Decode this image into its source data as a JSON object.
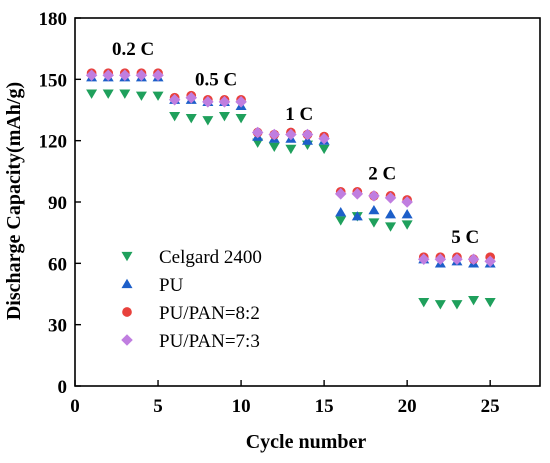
{
  "chart_data": {
    "type": "scatter",
    "xlabel": "Cycle number",
    "ylabel": "Discharge Capacity(mAh/g)",
    "xlim": [
      0,
      28
    ],
    "ylim": [
      0,
      180
    ],
    "xticks": [
      0,
      5,
      10,
      15,
      20,
      25
    ],
    "yticks": [
      0,
      30,
      60,
      90,
      120,
      150,
      180
    ],
    "legend_position": "bottom-left",
    "x": [
      1,
      2,
      3,
      4,
      5,
      6,
      7,
      8,
      9,
      10,
      11,
      12,
      13,
      14,
      15,
      16,
      17,
      18,
      19,
      20,
      21,
      22,
      23,
      24,
      25
    ],
    "series": [
      {
        "name": "Celgard 2400",
        "marker": "triangle-down",
        "color": "#1fa05c",
        "values": [
          143,
          143,
          143,
          142,
          142,
          132,
          131,
          130,
          132,
          131,
          119,
          117,
          116,
          118,
          116,
          81,
          83,
          80,
          78,
          79,
          41,
          40,
          40,
          42,
          41
        ]
      },
      {
        "name": "PU",
        "marker": "triangle-up",
        "color": "#1d5fc9",
        "values": [
          151,
          151,
          151,
          151,
          151,
          140,
          140,
          139,
          139,
          137,
          122,
          121,
          121,
          120,
          120,
          85,
          83,
          86,
          84,
          84,
          62,
          60,
          61,
          60,
          60
        ]
      },
      {
        "name": "PU/PAN=8:2",
        "marker": "circle",
        "color": "#e8413c",
        "values": [
          153,
          153,
          153,
          153,
          153,
          141,
          142,
          140,
          140,
          140,
          124,
          123,
          124,
          123,
          122,
          95,
          95,
          93,
          93,
          91,
          63,
          63,
          63,
          62,
          63
        ]
      },
      {
        "name": "PU/PAN=7:3",
        "marker": "diamond",
        "color": "#c07ee0",
        "values": [
          152,
          152,
          152,
          152,
          152,
          140,
          141,
          139,
          139,
          139,
          124,
          123,
          123,
          123,
          121,
          94,
          94,
          93,
          92,
          90,
          62,
          62,
          62,
          62,
          61
        ]
      }
    ],
    "annotations": [
      {
        "text": "0.2 C",
        "x": 3.5,
        "y": 162
      },
      {
        "text": "0.5 C",
        "x": 8.5,
        "y": 147
      },
      {
        "text": "1 C",
        "x": 13.5,
        "y": 130
      },
      {
        "text": "2 C",
        "x": 18.5,
        "y": 101
      },
      {
        "text": "5 C",
        "x": 23.5,
        "y": 70
      }
    ]
  }
}
